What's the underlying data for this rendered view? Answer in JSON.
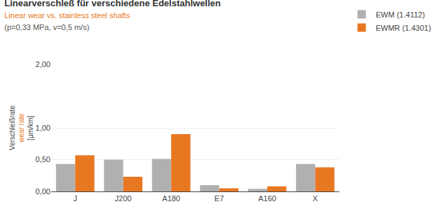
{
  "chart_data": {
    "type": "bar",
    "title": "Linearverschleß für verschiedene Edelstahlwellen",
    "subtitle": [
      "Linear wear vs. stainless steel shafts",
      "(p=0,33 MPa, v=0,5 m/s)"
    ],
    "ylabel": [
      "Verschleißrate",
      "wear rate",
      "[µm/km]"
    ],
    "categories": [
      "J",
      "J200",
      "A180",
      "E7",
      "A160",
      "X"
    ],
    "series": [
      {
        "name": "EWM (1.4112)",
        "color": "#b0b0b0",
        "values": [
          0.43,
          0.5,
          0.51,
          0.1,
          0.04,
          0.43
        ]
      },
      {
        "name": "EWMR (1.4301)",
        "color": "#e87722",
        "values": [
          0.57,
          0.23,
          0.9,
          0.05,
          0.08,
          0.38
        ]
      }
    ],
    "ylim": [
      0,
      2.0
    ],
    "yticks": [
      {
        "value": 0.0,
        "label": "0,00"
      },
      {
        "value": 0.5,
        "label": "0,50"
      },
      {
        "value": 1.0,
        "label": "1,00"
      },
      {
        "value": 2.0,
        "label": "2,00"
      }
    ],
    "grid": true,
    "legend": "upper right"
  }
}
